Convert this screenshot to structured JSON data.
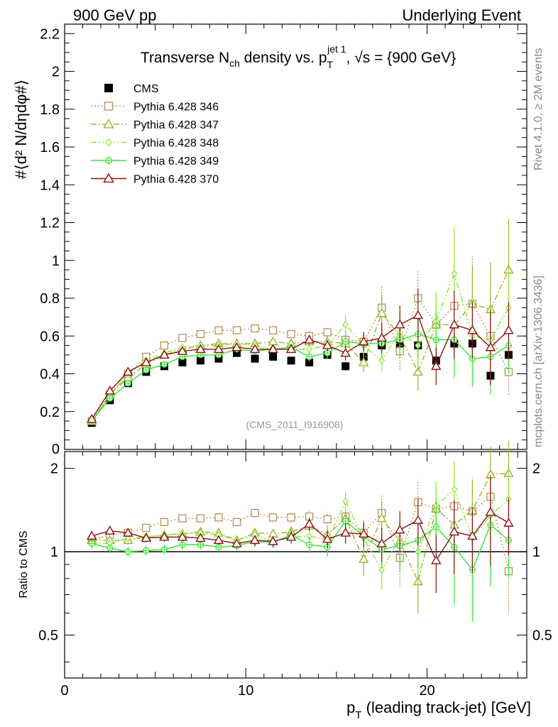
{
  "header": {
    "left": "900 GeV pp",
    "right": "Underlying Event"
  },
  "side_labels": {
    "rivet": "Rivet 4.1.0, ≥ 2M events",
    "mcplots": "mcplots.cern.ch [arXiv:1306.3436]"
  },
  "watermark": "(CMS_2011_I916908)",
  "title": {
    "pre": "Transverse N",
    "sub1": "ch",
    "mid": " density vs. p",
    "sub2": "T",
    "sup": "jet 1",
    "post": ", √s = {900 GeV}"
  },
  "ylabel_main": "#⟨d² N/dηdφ#⟩",
  "ylabel_ratio": "Ratio to CMS",
  "xlabel": "p",
  "xlabel_sub": "T",
  "xlabel_post": " (leading track-jet) [GeV]",
  "colors": {
    "cms": "#000000",
    "p346": "#b8905a",
    "p347": "#a0b030",
    "p348": "#8de830",
    "p349": "#33e830",
    "p370": "#8b1010"
  },
  "chart_data": [
    {
      "type": "scatter",
      "panel": "main",
      "title": "Transverse Nch density vs. pT jet 1, √s = {900 GeV}",
      "xlabel": "pT (leading track-jet) [GeV]",
      "ylabel": "#⟨d² N/dηdφ#⟩",
      "xlim": [
        0,
        25.5
      ],
      "ylim": [
        0,
        2.25
      ],
      "xticks": [
        0,
        10,
        20
      ],
      "yticks": [
        0.2,
        0.4,
        0.6,
        0.8,
        1,
        1.2,
        1.4,
        1.6,
        1.8,
        2,
        2.2
      ],
      "x": [
        1.5,
        2.5,
        3.5,
        4.5,
        5.5,
        6.5,
        7.5,
        8.5,
        9.5,
        10.5,
        11.5,
        12.5,
        13.5,
        14.5,
        15.5,
        16.5,
        17.5,
        18.5,
        19.5,
        20.5,
        21.5,
        22.5,
        23.5,
        24.5
      ],
      "series": [
        {
          "key": "cms",
          "name": "CMS",
          "marker": "square-filled",
          "values": [
            0.14,
            0.26,
            0.35,
            0.41,
            0.44,
            0.46,
            0.47,
            0.48,
            0.51,
            0.48,
            0.49,
            0.47,
            0.46,
            0.5,
            0.44,
            0.49,
            0.55,
            0.55,
            0.55,
            0.47,
            0.56,
            0.56,
            0.39,
            0.5
          ],
          "errors": [
            0.005,
            0.006,
            0.007,
            0.008,
            0.009,
            0.01,
            0.01,
            0.012,
            0.014,
            0.015,
            0.016,
            0.017,
            0.018,
            0.02,
            0.022,
            0.024,
            0.026,
            0.03,
            0.034,
            0.038,
            0.042,
            0.046,
            0.05,
            0.06
          ]
        },
        {
          "key": "p346",
          "name": "Pythia 6.428 346",
          "marker": "square-open",
          "dash": "2,3",
          "values": [
            0.15,
            0.29,
            0.4,
            0.49,
            0.55,
            0.59,
            0.61,
            0.63,
            0.63,
            0.64,
            0.63,
            0.61,
            0.6,
            0.62,
            0.58,
            0.57,
            0.75,
            0.52,
            0.8,
            0.66,
            0.76,
            0.77,
            0.6,
            0.41
          ],
          "errors": [
            0.005,
            0.006,
            0.007,
            0.008,
            0.009,
            0.01,
            0.011,
            0.012,
            0.013,
            0.015,
            0.017,
            0.02,
            0.025,
            0.03,
            0.04,
            0.06,
            0.12,
            0.1,
            0.15,
            0.16,
            0.2,
            0.25,
            0.25,
            0.12
          ]
        },
        {
          "key": "p347",
          "name": "Pythia 6.428 347",
          "marker": "triangle-open",
          "dash": "8,3,2,3",
          "values": [
            0.15,
            0.29,
            0.38,
            0.45,
            0.5,
            0.53,
            0.55,
            0.56,
            0.56,
            0.56,
            0.57,
            0.56,
            0.57,
            0.57,
            0.56,
            0.46,
            0.72,
            0.6,
            0.41,
            0.66,
            0.66,
            0.77,
            0.74,
            0.95
          ],
          "errors": [
            0.005,
            0.006,
            0.007,
            0.008,
            0.009,
            0.01,
            0.011,
            0.012,
            0.013,
            0.015,
            0.017,
            0.02,
            0.025,
            0.03,
            0.04,
            0.05,
            0.1,
            0.12,
            0.1,
            0.14,
            0.18,
            0.2,
            0.25,
            0.27
          ]
        },
        {
          "key": "p348",
          "name": "Pythia 6.428 348",
          "marker": "diamond-open",
          "dash": "8,3,2,3,2,3",
          "values": [
            0.15,
            0.28,
            0.4,
            0.47,
            0.51,
            0.54,
            0.55,
            0.55,
            0.56,
            0.55,
            0.53,
            0.53,
            0.53,
            0.55,
            0.66,
            0.55,
            0.47,
            0.62,
            0.55,
            0.68,
            0.93,
            0.6,
            0.58,
            0.75
          ],
          "errors": [
            0.005,
            0.006,
            0.007,
            0.008,
            0.009,
            0.01,
            0.011,
            0.012,
            0.013,
            0.015,
            0.017,
            0.02,
            0.025,
            0.03,
            0.05,
            0.06,
            0.06,
            0.1,
            0.14,
            0.15,
            0.25,
            0.2,
            0.2,
            0.22
          ]
        },
        {
          "key": "p349",
          "name": "Pythia 6.428 349",
          "marker": "circle-cross",
          "dash": "",
          "values": [
            0.15,
            0.27,
            0.35,
            0.42,
            0.45,
            0.49,
            0.5,
            0.5,
            0.53,
            0.52,
            0.53,
            0.54,
            0.49,
            0.51,
            0.57,
            0.56,
            0.56,
            0.58,
            0.61,
            0.58,
            0.58,
            0.48,
            0.49,
            0.55
          ],
          "errors": [
            0.005,
            0.006,
            0.007,
            0.008,
            0.009,
            0.01,
            0.011,
            0.012,
            0.013,
            0.015,
            0.017,
            0.02,
            0.025,
            0.03,
            0.04,
            0.05,
            0.07,
            0.1,
            0.12,
            0.14,
            0.2,
            0.15,
            0.2,
            0.15
          ]
        },
        {
          "key": "p370",
          "name": "Pythia 6.428 370",
          "marker": "triangle-open",
          "dash": "",
          "values": [
            0.16,
            0.31,
            0.41,
            0.46,
            0.5,
            0.52,
            0.53,
            0.53,
            0.54,
            0.53,
            0.53,
            0.53,
            0.58,
            0.55,
            0.51,
            0.57,
            0.59,
            0.66,
            0.71,
            0.44,
            0.66,
            0.63,
            0.54,
            0.63
          ],
          "errors": [
            0.005,
            0.006,
            0.007,
            0.008,
            0.009,
            0.01,
            0.011,
            0.012,
            0.013,
            0.015,
            0.017,
            0.02,
            0.025,
            0.03,
            0.04,
            0.05,
            0.08,
            0.1,
            0.14,
            0.1,
            0.18,
            0.15,
            0.2,
            0.15
          ]
        }
      ]
    },
    {
      "type": "scatter",
      "panel": "ratio",
      "ylabel": "Ratio to CMS",
      "xlim": [
        0,
        25.5
      ],
      "ylim": [
        0.35,
        2.3
      ],
      "ylog": true,
      "yticks": [
        0.5,
        1,
        2
      ],
      "reference_line": 1,
      "x": [
        1.5,
        2.5,
        3.5,
        4.5,
        5.5,
        6.5,
        7.5,
        8.5,
        9.5,
        10.5,
        11.5,
        12.5,
        13.5,
        14.5,
        15.5,
        16.5,
        17.5,
        18.5,
        19.5,
        20.5,
        21.5,
        22.5,
        23.5,
        24.5
      ],
      "series": [
        {
          "key": "p346",
          "values": [
            1.1,
            1.15,
            1.17,
            1.22,
            1.28,
            1.32,
            1.32,
            1.33,
            1.28,
            1.38,
            1.33,
            1.33,
            1.34,
            1.31,
            1.34,
            1.17,
            1.38,
            0.95,
            1.51,
            1.43,
            1.46,
            1.4,
            1.58,
            0.85
          ],
          "errors": [
            0.04,
            0.04,
            0.04,
            0.04,
            0.04,
            0.04,
            0.04,
            0.04,
            0.04,
            0.05,
            0.05,
            0.06,
            0.07,
            0.08,
            0.1,
            0.13,
            0.22,
            0.2,
            0.3,
            0.3,
            0.4,
            0.45,
            0.5,
            0.25
          ]
        },
        {
          "key": "p347",
          "values": [
            1.1,
            1.1,
            1.1,
            1.13,
            1.15,
            1.16,
            1.18,
            1.17,
            1.1,
            1.17,
            1.16,
            1.18,
            1.24,
            1.15,
            1.32,
            0.94,
            1.32,
            1.09,
            0.78,
            1.43,
            1.25,
            1.41,
            1.9,
            1.92
          ],
          "errors": [
            0.04,
            0.04,
            0.04,
            0.04,
            0.04,
            0.04,
            0.04,
            0.04,
            0.04,
            0.05,
            0.05,
            0.06,
            0.07,
            0.08,
            0.1,
            0.12,
            0.2,
            0.22,
            0.18,
            0.3,
            0.35,
            0.4,
            0.5,
            0.6
          ]
        },
        {
          "key": "p348",
          "values": [
            1.08,
            1.07,
            1.12,
            1.13,
            1.15,
            1.16,
            1.17,
            1.15,
            1.1,
            1.15,
            1.09,
            1.13,
            1.14,
            1.1,
            1.52,
            1.12,
            0.86,
            1.12,
            1.0,
            1.47,
            1.68,
            1.12,
            1.35,
            1.55
          ],
          "errors": [
            0.04,
            0.04,
            0.04,
            0.04,
            0.04,
            0.04,
            0.04,
            0.04,
            0.04,
            0.05,
            0.05,
            0.06,
            0.07,
            0.08,
            0.12,
            0.13,
            0.13,
            0.2,
            0.25,
            0.32,
            0.45,
            0.35,
            0.5,
            0.45
          ]
        },
        {
          "key": "p349",
          "values": [
            1.07,
            1.03,
            1.0,
            1.01,
            1.02,
            1.06,
            1.06,
            1.04,
            1.05,
            1.09,
            1.08,
            1.15,
            1.06,
            1.04,
            1.29,
            1.14,
            1.02,
            1.05,
            1.1,
            1.23,
            1.04,
            0.86,
            1.25,
            1.1
          ],
          "errors": [
            0.04,
            0.04,
            0.04,
            0.04,
            0.04,
            0.04,
            0.04,
            0.04,
            0.04,
            0.05,
            0.05,
            0.06,
            0.07,
            0.08,
            0.1,
            0.12,
            0.15,
            0.2,
            0.22,
            0.3,
            0.4,
            0.3,
            0.5,
            0.3
          ]
        },
        {
          "key": "p370",
          "values": [
            1.14,
            1.19,
            1.17,
            1.12,
            1.13,
            1.13,
            1.12,
            1.1,
            1.07,
            1.1,
            1.09,
            1.13,
            1.26,
            1.11,
            1.17,
            1.16,
            1.07,
            1.2,
            1.3,
            0.93,
            1.18,
            1.14,
            1.39,
            1.27
          ],
          "errors": [
            0.04,
            0.04,
            0.04,
            0.04,
            0.04,
            0.04,
            0.04,
            0.04,
            0.04,
            0.05,
            0.05,
            0.06,
            0.07,
            0.08,
            0.1,
            0.12,
            0.15,
            0.2,
            0.25,
            0.22,
            0.35,
            0.3,
            0.5,
            0.3
          ]
        }
      ]
    }
  ]
}
